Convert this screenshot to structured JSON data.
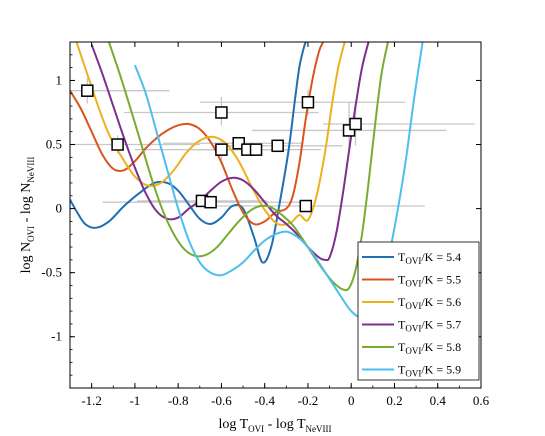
{
  "chart_data": {
    "type": "line",
    "title": "",
    "xlabel": {
      "main": "log T",
      "sub1": "OVI",
      "mid": " - log T",
      "sub2": "NeVIII"
    },
    "ylabel": {
      "main": "log N",
      "sub1": "OVI",
      "mid": " - log N",
      "sub2": "NeVIII"
    },
    "xlim": [
      -1.3,
      0.6
    ],
    "ylim": [
      -1.4,
      1.3
    ],
    "xticks": [
      -1.2,
      -1.0,
      -0.8,
      -0.6,
      -0.4,
      -0.2,
      0,
      0.2,
      0.4,
      0.6
    ],
    "xtick_labels": [
      "-1.2",
      "-1",
      "-0.8",
      "-0.6",
      "-0.4",
      "-0.2",
      "0",
      "0.2",
      "0.4",
      "0.6"
    ],
    "yticks": [
      -1,
      -0.5,
      0,
      0.5,
      1
    ],
    "ytick_labels": [
      "-1",
      "-0.5",
      "0",
      "0.5",
      "1"
    ],
    "grid": false,
    "legend_position": "bottom-right",
    "series": [
      {
        "name": {
          "pre": "T",
          "sub": "OVI",
          "post": "/K = 5.4"
        },
        "color": "#1f6fb4",
        "x": [
          -1.3,
          -1.27,
          -1.23,
          -1.18,
          -1.12,
          -1.05,
          -0.98,
          -0.91,
          -0.85,
          -0.8,
          -0.75,
          -0.7,
          -0.65,
          -0.6,
          -0.55,
          -0.5,
          -0.45,
          -0.41,
          -0.37,
          -0.33,
          -0.29,
          -0.26,
          -0.24,
          -0.22,
          -0.21
        ],
        "y": [
          0.07,
          -0.02,
          -0.12,
          -0.15,
          -0.1,
          0.02,
          0.12,
          0.2,
          0.2,
          0.14,
          0.03,
          -0.08,
          -0.12,
          -0.07,
          0.02,
          0.0,
          -0.22,
          -0.42,
          -0.3,
          0.05,
          0.45,
          0.85,
          1.1,
          1.25,
          1.3
        ]
      },
      {
        "name": {
          "pre": "T",
          "sub": "OVI",
          "post": "/K = 5.5"
        },
        "color": "#d9541e",
        "x": [
          -1.3,
          -1.25,
          -1.2,
          -1.15,
          -1.1,
          -1.05,
          -1.0,
          -0.95,
          -0.9,
          -0.85,
          -0.8,
          -0.75,
          -0.7,
          -0.65,
          -0.6,
          -0.55,
          -0.5,
          -0.45,
          -0.4,
          -0.35,
          -0.3,
          -0.27,
          -0.24,
          -0.21,
          -0.18,
          -0.15,
          -0.13
        ],
        "y": [
          0.92,
          0.78,
          0.6,
          0.42,
          0.31,
          0.3,
          0.37,
          0.47,
          0.55,
          0.61,
          0.65,
          0.66,
          0.62,
          0.52,
          0.36,
          0.15,
          -0.03,
          -0.12,
          -0.1,
          -0.03,
          0.0,
          0.1,
          0.35,
          0.7,
          1.0,
          1.22,
          1.3
        ]
      },
      {
        "name": {
          "pre": "T",
          "sub": "OVI",
          "post": "/K = 5.6"
        },
        "color": "#edb120",
        "x": [
          -1.27,
          -1.22,
          -1.17,
          -1.12,
          -1.06,
          -1.0,
          -0.94,
          -0.88,
          -0.82,
          -0.76,
          -0.7,
          -0.64,
          -0.58,
          -0.52,
          -0.46,
          -0.4,
          -0.34,
          -0.28,
          -0.24,
          -0.2,
          -0.16,
          -0.12,
          -0.09,
          -0.06,
          -0.03
        ],
        "y": [
          1.3,
          1.05,
          0.8,
          0.58,
          0.4,
          0.25,
          0.18,
          0.2,
          0.3,
          0.44,
          0.53,
          0.56,
          0.51,
          0.37,
          0.17,
          -0.01,
          -0.12,
          -0.11,
          -0.05,
          -0.09,
          0.1,
          0.45,
          0.8,
          1.1,
          1.3
        ]
      },
      {
        "name": {
          "pre": "T",
          "sub": "OVI",
          "post": "/K = 5.7"
        },
        "color": "#7e2f8e",
        "x": [
          -1.2,
          -1.15,
          -1.1,
          -1.05,
          -1.0,
          -0.95,
          -0.9,
          -0.85,
          -0.8,
          -0.75,
          -0.7,
          -0.65,
          -0.6,
          -0.55,
          -0.5,
          -0.45,
          -0.4,
          -0.35,
          -0.3,
          -0.25,
          -0.2,
          -0.15,
          -0.12,
          -0.1,
          -0.07,
          -0.04,
          -0.01,
          0.02,
          0.05,
          0.08
        ],
        "y": [
          1.28,
          1.05,
          0.8,
          0.55,
          0.32,
          0.12,
          -0.02,
          -0.08,
          -0.07,
          0.0,
          0.06,
          0.14,
          0.21,
          0.24,
          0.22,
          0.15,
          0.05,
          -0.05,
          -0.12,
          -0.2,
          -0.3,
          -0.38,
          -0.4,
          -0.38,
          -0.2,
          0.1,
          0.45,
          0.8,
          1.1,
          1.3
        ]
      },
      {
        "name": {
          "pre": "T",
          "sub": "OVI",
          "post": "/K = 5.8"
        },
        "color": "#77ac30",
        "x": [
          -1.12,
          -1.07,
          -1.02,
          -0.97,
          -0.92,
          -0.87,
          -0.82,
          -0.77,
          -0.72,
          -0.67,
          -0.62,
          -0.57,
          -0.52,
          -0.47,
          -0.42,
          -0.37,
          -0.32,
          -0.27,
          -0.22,
          -0.17,
          -0.12,
          -0.08,
          -0.04,
          -0.01,
          0.02,
          0.05,
          0.08,
          0.11,
          0.14,
          0.17
        ],
        "y": [
          1.3,
          1.05,
          0.78,
          0.5,
          0.22,
          -0.02,
          -0.2,
          -0.32,
          -0.37,
          -0.36,
          -0.3,
          -0.2,
          -0.1,
          -0.02,
          0.02,
          0.01,
          -0.05,
          -0.13,
          -0.25,
          -0.38,
          -0.5,
          -0.58,
          -0.63,
          -0.62,
          -0.48,
          -0.2,
          0.2,
          0.65,
          1.05,
          1.3
        ]
      },
      {
        "name": {
          "pre": "T",
          "sub": "OVI",
          "post": "/K = 5.9"
        },
        "color": "#4dbeee",
        "x": [
          -1.0,
          -0.95,
          -0.9,
          -0.85,
          -0.8,
          -0.75,
          -0.7,
          -0.65,
          -0.6,
          -0.55,
          -0.5,
          -0.45,
          -0.4,
          -0.35,
          -0.3,
          -0.25,
          -0.2,
          -0.15,
          -0.1,
          -0.05,
          0.0,
          0.05,
          0.1,
          0.15,
          0.2,
          0.25,
          0.29,
          0.33
        ],
        "y": [
          1.12,
          0.9,
          0.6,
          0.3,
          0.0,
          -0.25,
          -0.42,
          -0.5,
          -0.52,
          -0.48,
          -0.42,
          -0.33,
          -0.25,
          -0.2,
          -0.18,
          -0.22,
          -0.3,
          -0.42,
          -0.55,
          -0.68,
          -0.8,
          -0.85,
          -0.78,
          -0.55,
          -0.15,
          0.35,
          0.85,
          1.3
        ]
      }
    ],
    "observations": {
      "marker": "open-square",
      "error_color": "#c8c8c8",
      "points": [
        {
          "x": -1.22,
          "y": 0.92,
          "xerr": [
            0.12,
            0.38
          ],
          "yerr": [
            0.1,
            0.1
          ]
        },
        {
          "x": -1.08,
          "y": 0.5,
          "xerr": [
            0.22,
            0.38
          ],
          "yerr": [
            0.07,
            0.07
          ]
        },
        {
          "x": -0.6,
          "y": 0.75,
          "xerr": [
            0.45,
            0.45
          ],
          "yerr": [
            0.1,
            0.12
          ]
        },
        {
          "x": -0.6,
          "y": 0.46,
          "xerr": [
            0.4,
            0.3
          ],
          "yerr": [
            0.08,
            0.08
          ]
        },
        {
          "x": -0.52,
          "y": 0.51,
          "xerr": [
            0.35,
            0.3
          ],
          "yerr": [
            0.05,
            0.05
          ]
        },
        {
          "x": -0.48,
          "y": 0.46,
          "xerr": [
            0.2,
            0.2
          ],
          "yerr": [
            0.04,
            0.04
          ]
        },
        {
          "x": -0.44,
          "y": 0.46,
          "xerr": [
            0.3,
            0.3
          ],
          "yerr": [
            0.04,
            0.04
          ]
        },
        {
          "x": -0.34,
          "y": 0.49,
          "xerr": [
            0.3,
            0.3
          ],
          "yerr": [
            0.04,
            0.04
          ]
        },
        {
          "x": -0.2,
          "y": 0.83,
          "xerr": [
            0.5,
            0.45
          ],
          "yerr": [
            0.1,
            0.1
          ]
        },
        {
          "x": -0.69,
          "y": 0.06,
          "xerr": [
            0.3,
            0.3
          ],
          "yerr": [
            0.04,
            0.04
          ]
        },
        {
          "x": -0.65,
          "y": 0.05,
          "xerr": [
            0.5,
            0.45
          ],
          "yerr": [
            0.04,
            0.04
          ]
        },
        {
          "x": -0.21,
          "y": 0.02,
          "xerr": [
            0.45,
            0.55
          ],
          "yerr": [
            0.04,
            0.04
          ]
        },
        {
          "x": -0.01,
          "y": 0.61,
          "xerr": [
            0.45,
            0.45
          ],
          "yerr": [
            0.15,
            0.22
          ]
        },
        {
          "x": 0.02,
          "y": 0.66,
          "xerr": [
            0.15,
            0.55
          ],
          "yerr": [
            0.17,
            0.17
          ]
        }
      ]
    }
  }
}
